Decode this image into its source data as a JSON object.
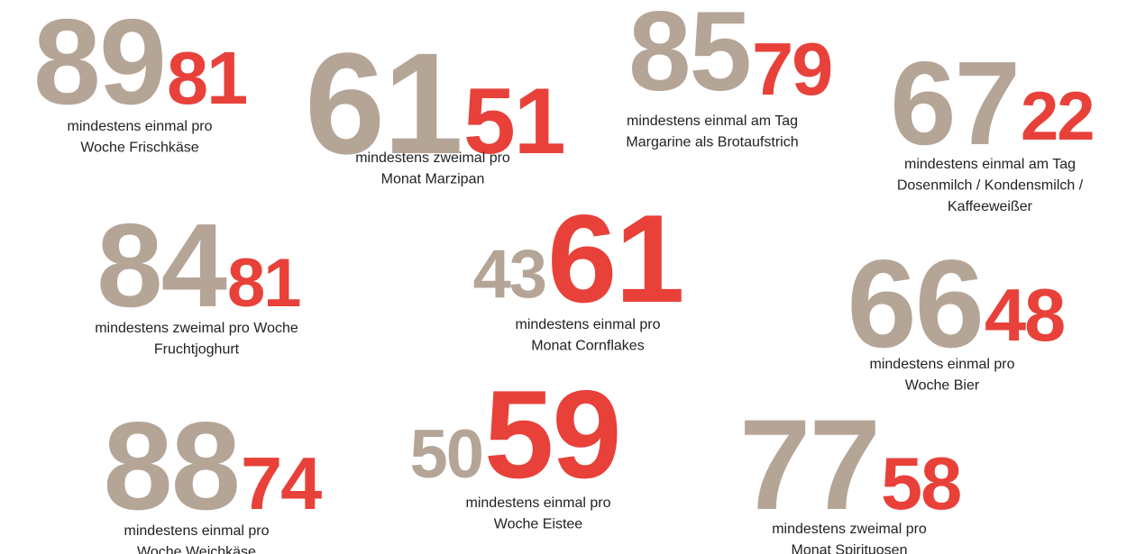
{
  "items": [
    {
      "first": 89,
      "second": 81,
      "label": [
        "mindestens einmal pro",
        "Woche Frischkäse"
      ]
    },
    {
      "first": 61,
      "second": 51,
      "label": [
        "mindestens zweimal pro",
        "Monat Marzipan"
      ]
    },
    {
      "first": 85,
      "second": 79,
      "label": [
        "mindestens einmal am Tag",
        "Margarine als Brotaufstrich"
      ]
    },
    {
      "first": 67,
      "second": 22,
      "label": [
        "mindestens einmal am Tag",
        "Dosenmilch / Kondensmilch /",
        "Kaffeeweißer"
      ]
    },
    {
      "first": 84,
      "second": 81,
      "label": [
        "mindestens zweimal pro Woche",
        "Fruchtjoghurt"
      ]
    },
    {
      "first": 43,
      "second": 61,
      "label": [
        "mindestens einmal pro",
        "Monat Cornflakes"
      ]
    },
    {
      "first": 66,
      "second": 48,
      "label": [
        "mindestens einmal pro",
        "Woche Bier"
      ]
    },
    {
      "first": 88,
      "second": 74,
      "label": [
        "mindestens einmal pro",
        "Woche Weichkäse"
      ]
    },
    {
      "first": 50,
      "second": 59,
      "label": [
        "mindestens einmal pro",
        "Woche Eistee"
      ]
    },
    {
      "first": 77,
      "second": 58,
      "label": [
        "mindestens zweimal pro",
        "Monat Spirituosen"
      ]
    }
  ]
}
